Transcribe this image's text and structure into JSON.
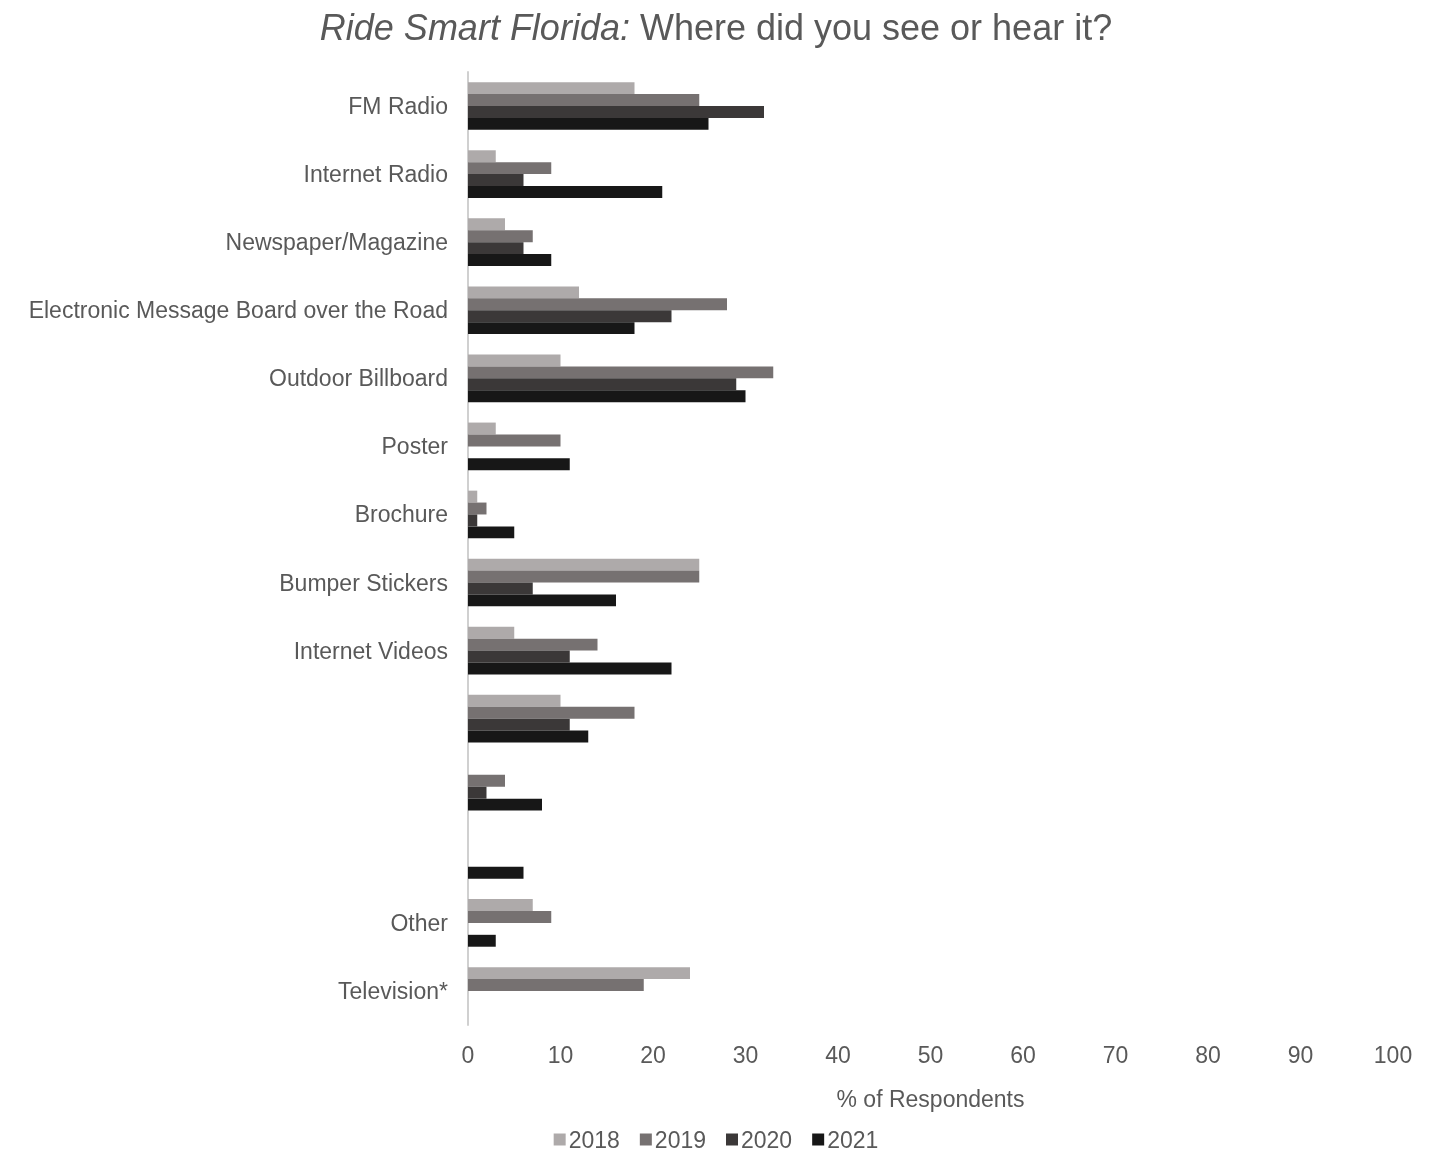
{
  "chart_data": {
    "type": "bar",
    "orientation": "horizontal",
    "title": "Ride Smart Florida: Where did you see or hear it?",
    "xlabel": "% of Respondents",
    "categories": [
      "FM Radio",
      "Internet Radio",
      "Newspaper/Magazine",
      "Electronic Message Board over the Road",
      "Outdoor Billboard",
      "Poster",
      "Brochure",
      "Bumper Stickers",
      "Internet Videos",
      null,
      null,
      null,
      "Other",
      "Television*"
    ],
    "series": [
      {
        "name": "2018",
        "color": "#aeaaaa",
        "values": [
          18,
          3,
          4,
          12,
          10,
          3,
          1,
          25,
          5,
          10,
          null,
          null,
          7,
          24
        ]
      },
      {
        "name": "2019",
        "color": "#767171",
        "values": [
          25,
          9,
          7,
          28,
          33,
          10,
          2,
          25,
          14,
          18,
          4,
          null,
          9,
          19
        ]
      },
      {
        "name": "2020",
        "color": "#3b3838",
        "values": [
          32,
          6,
          6,
          22,
          29,
          null,
          1,
          7,
          11,
          11,
          2,
          null,
          null,
          null
        ]
      },
      {
        "name": "2021",
        "color": "#171717",
        "values": [
          26,
          21,
          9,
          18,
          30,
          11,
          5,
          16,
          22,
          13,
          8,
          6,
          3,
          null
        ]
      }
    ],
    "xlim": [
      0,
      100
    ],
    "xticks": [
      0,
      10,
      20,
      30,
      40,
      50,
      60,
      70,
      80,
      90,
      100
    ],
    "legend": "bottom",
    "grid": false
  }
}
